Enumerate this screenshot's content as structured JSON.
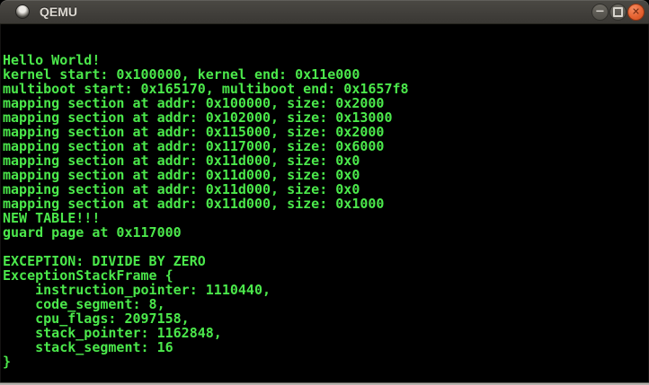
{
  "window": {
    "title": "QEMU",
    "controls": {
      "minimize_glyph": "−",
      "close_glyph": "✕"
    }
  },
  "colors": {
    "terminal_text": "#4be84b",
    "terminal_background": "#000000",
    "titlebar_background": "#413f3b",
    "close_button": "#e56332",
    "bottom_edge": "#b5b2ad"
  },
  "terminal": {
    "lines": [
      "Hello World!",
      "kernel start: 0x100000, kernel end: 0x11e000",
      "multiboot start: 0x165170, multiboot end: 0x1657f8",
      "mapping section at addr: 0x100000, size: 0x2000",
      "mapping section at addr: 0x102000, size: 0x13000",
      "mapping section at addr: 0x115000, size: 0x2000",
      "mapping section at addr: 0x117000, size: 0x6000",
      "mapping section at addr: 0x11d000, size: 0x0",
      "mapping section at addr: 0x11d000, size: 0x0",
      "mapping section at addr: 0x11d000, size: 0x0",
      "mapping section at addr: 0x11d000, size: 0x1000",
      "NEW TABLE!!!",
      "guard page at 0x117000",
      "",
      "EXCEPTION: DIVIDE BY ZERO",
      "ExceptionStackFrame {",
      "    instruction_pointer: 1110440,",
      "    code_segment: 8,",
      "    cpu_flags: 2097158,",
      "    stack_pointer: 1162848,",
      "    stack_segment: 16",
      "}"
    ]
  }
}
